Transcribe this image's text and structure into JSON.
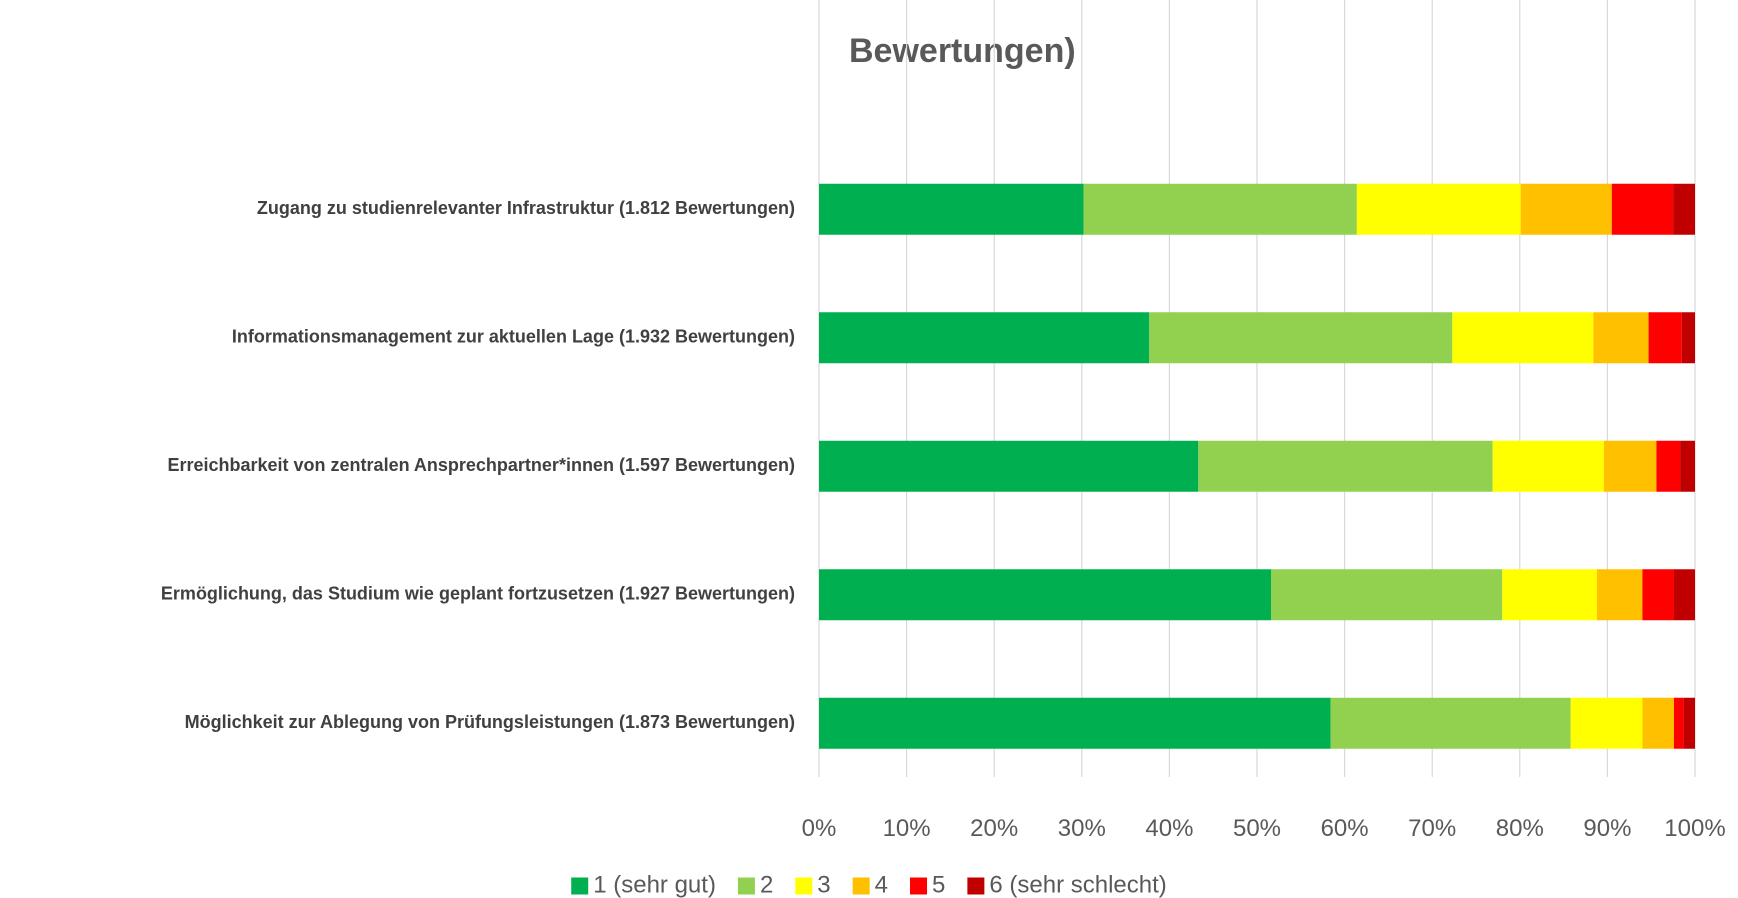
{
  "chart_data": {
    "type": "stacked_bar_horizontal",
    "title": "Bewertungen)",
    "categories": [
      "Zugang zu studienrelevanter Infrastruktur (1.812 Bewertungen)",
      "Informationsmanagement zur aktuellen Lage (1.932 Bewertungen)",
      "Erreichbarkeit von zentralen Ansprechpartner*innen (1.597 Bewertungen)",
      "Ermöglichung, das Studium wie geplant fortzusetzen (1.927 Bewertungen)",
      "Möglichkeit zur Ablegung von Prüfungsleistungen (1.873 Bewertungen)"
    ],
    "series": [
      {
        "name": "1 (sehr gut)",
        "color": "#00b050",
        "values": [
          30.2,
          37.7,
          43.3,
          51.6,
          58.4
        ]
      },
      {
        "name": "2",
        "color": "#92d050",
        "values": [
          31.2,
          34.6,
          33.6,
          26.4,
          27.4
        ]
      },
      {
        "name": "3",
        "color": "#ffff00",
        "values": [
          18.7,
          16.1,
          12.7,
          10.8,
          8.2
        ]
      },
      {
        "name": "4",
        "color": "#ffc000",
        "values": [
          10.4,
          6.3,
          6.0,
          5.2,
          3.6
        ]
      },
      {
        "name": "5",
        "color": "#ff0000",
        "values": [
          7.0,
          3.8,
          2.7,
          3.6,
          1.1
        ]
      },
      {
        "name": "6 (sehr schlecht)",
        "color": "#c00000",
        "values": [
          2.5,
          1.5,
          1.7,
          2.4,
          1.3
        ]
      }
    ],
    "xlim": [
      0,
      100
    ],
    "xticks": [
      {
        "value": 0,
        "label": "0%"
      },
      {
        "value": 10,
        "label": "10%"
      },
      {
        "value": 20,
        "label": "20%"
      },
      {
        "value": 30,
        "label": "30%"
      },
      {
        "value": 40,
        "label": "40%"
      },
      {
        "value": 50,
        "label": "50%"
      },
      {
        "value": 60,
        "label": "60%"
      },
      {
        "value": 70,
        "label": "70%"
      },
      {
        "value": 80,
        "label": "80%"
      },
      {
        "value": 90,
        "label": "90%"
      },
      {
        "value": 100,
        "label": "100%"
      }
    ],
    "grid": true,
    "legend": "bottom"
  }
}
